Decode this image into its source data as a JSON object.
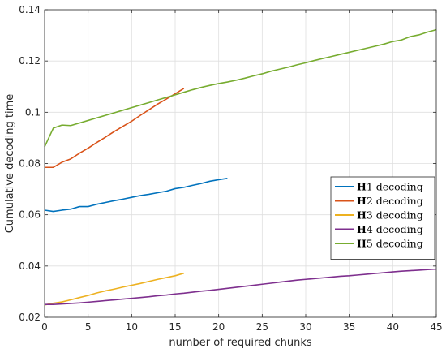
{
  "chart_data": {
    "type": "line",
    "title": "",
    "xlabel": "number of required chunks",
    "ylabel": "Cumulative decoding time",
    "xlim": [
      0,
      45
    ],
    "ylim": [
      0.02,
      0.14
    ],
    "xticks": [
      0,
      5,
      10,
      15,
      20,
      25,
      30,
      35,
      40,
      45
    ],
    "yticks": [
      0.02,
      0.04,
      0.06,
      0.08,
      0.1,
      0.12,
      0.14
    ],
    "xtick_labels": [
      "0",
      "5",
      "10",
      "15",
      "20",
      "25",
      "30",
      "35",
      "40",
      "45"
    ],
    "ytick_labels": [
      "0.02",
      "0.04",
      "0.06",
      "0.08",
      "0.1",
      "0.12",
      "0.14"
    ],
    "grid": true,
    "legend_position": "center-right",
    "series": [
      {
        "name_bold": "H",
        "name": "1 decoding",
        "color": "#0072BD",
        "x": [
          0,
          1,
          2,
          3,
          4,
          5,
          6,
          7,
          8,
          9,
          10,
          11,
          12,
          13,
          14,
          15,
          16,
          17,
          18,
          19,
          20,
          21
        ],
        "y": [
          0.0618,
          0.0613,
          0.0618,
          0.0622,
          0.0632,
          0.0632,
          0.0641,
          0.0648,
          0.0655,
          0.0661,
          0.0668,
          0.0675,
          0.068,
          0.0686,
          0.0692,
          0.0702,
          0.0707,
          0.0715,
          0.0722,
          0.0731,
          0.0737,
          0.0742
        ]
      },
      {
        "name_bold": "H",
        "name": "2 decoding",
        "color": "#D95319",
        "x": [
          0,
          1,
          2,
          3,
          4,
          5,
          6,
          7,
          8,
          9,
          10,
          11,
          12,
          13,
          14,
          15,
          16
        ],
        "y": [
          0.0785,
          0.0785,
          0.0805,
          0.0818,
          0.084,
          0.086,
          0.0882,
          0.0903,
          0.0925,
          0.0945,
          0.0965,
          0.0988,
          0.101,
          0.1032,
          0.1052,
          0.1072,
          0.1093
        ]
      },
      {
        "name_bold": "H",
        "name": "3 decoding",
        "color": "#EDB120",
        "x": [
          0,
          1,
          2,
          3,
          4,
          5,
          6,
          7,
          8,
          9,
          10,
          11,
          12,
          13,
          14,
          15,
          16
        ],
        "y": [
          0.0248,
          0.0255,
          0.026,
          0.0268,
          0.0277,
          0.0285,
          0.0295,
          0.0303,
          0.031,
          0.0318,
          0.0325,
          0.0332,
          0.034,
          0.0348,
          0.0355,
          0.0362,
          0.0372
        ]
      },
      {
        "name_bold": "H",
        "name": "4 decoding",
        "color": "#7E2F8E",
        "x": [
          0,
          1,
          2,
          3,
          4,
          5,
          6,
          7,
          8,
          9,
          10,
          11,
          12,
          13,
          14,
          15,
          16,
          17,
          18,
          19,
          20,
          21,
          22,
          23,
          24,
          25,
          26,
          27,
          28,
          29,
          30,
          31,
          32,
          33,
          34,
          35,
          36,
          37,
          38,
          39,
          40,
          41,
          42,
          43,
          44,
          45
        ],
        "y": [
          0.025,
          0.025,
          0.0252,
          0.0254,
          0.0256,
          0.0259,
          0.0262,
          0.0265,
          0.0268,
          0.0271,
          0.0274,
          0.0277,
          0.028,
          0.0284,
          0.0287,
          0.0291,
          0.0294,
          0.0298,
          0.0302,
          0.0305,
          0.0309,
          0.0313,
          0.0317,
          0.0321,
          0.0325,
          0.0329,
          0.0333,
          0.0337,
          0.0341,
          0.0345,
          0.0348,
          0.0351,
          0.0354,
          0.0357,
          0.036,
          0.0362,
          0.0365,
          0.0368,
          0.0371,
          0.0374,
          0.0377,
          0.038,
          0.0382,
          0.0384,
          0.0386,
          0.0388
        ]
      },
      {
        "name_bold": "H",
        "name": "5 decoding",
        "color": "#77AC30",
        "x": [
          0,
          1,
          2,
          3,
          4,
          5,
          6,
          7,
          8,
          9,
          10,
          11,
          12,
          13,
          14,
          15,
          16,
          17,
          18,
          19,
          20,
          21,
          22,
          23,
          24,
          25,
          26,
          27,
          28,
          29,
          30,
          31,
          32,
          33,
          34,
          35,
          36,
          37,
          38,
          39,
          40,
          41,
          42,
          43,
          44,
          45
        ],
        "y": [
          0.0865,
          0.0938,
          0.095,
          0.0948,
          0.0958,
          0.0968,
          0.0978,
          0.0988,
          0.0998,
          0.1008,
          0.1018,
          0.1028,
          0.1038,
          0.1048,
          0.1058,
          0.1068,
          0.1078,
          0.1088,
          0.1097,
          0.1105,
          0.1112,
          0.1118,
          0.1125,
          0.1133,
          0.1142,
          0.115,
          0.116,
          0.1168,
          0.1176,
          0.1185,
          0.1193,
          0.1202,
          0.121,
          0.1218,
          0.1226,
          0.1234,
          0.1242,
          0.125,
          0.1258,
          0.1266,
          0.1276,
          0.1282,
          0.1295,
          0.1302,
          0.1313,
          0.1322
        ]
      }
    ]
  }
}
